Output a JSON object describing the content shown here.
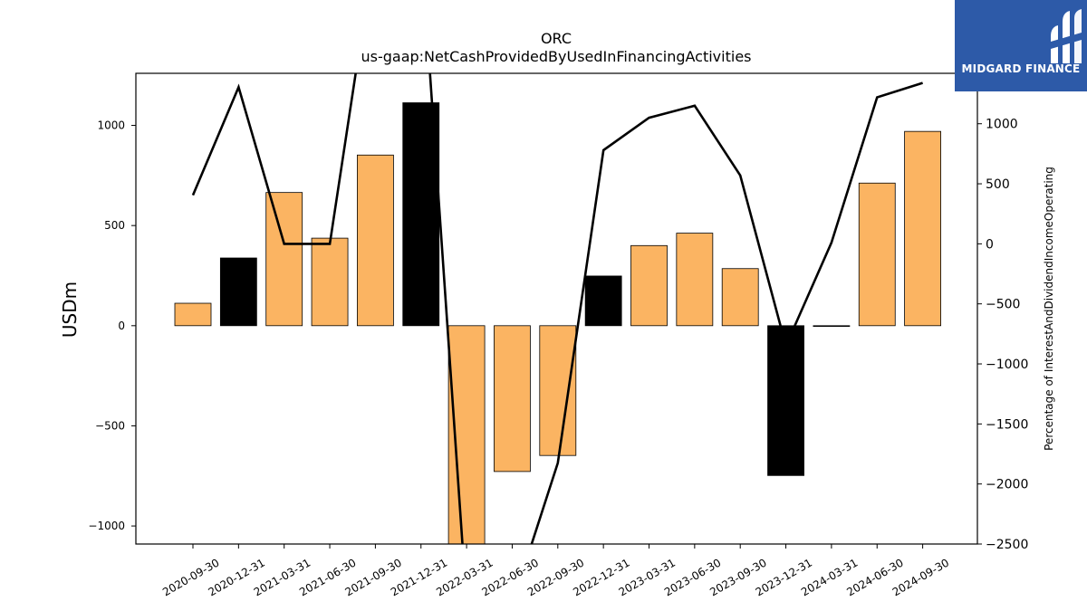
{
  "brand": {
    "name": "MIDGARD FINANCE",
    "color": "#2d5aa8"
  },
  "chart_data": {
    "type": "bar",
    "title": "ORC",
    "subtitle": "us-gaap:NetCashProvidedByUsedInFinancingActivities",
    "ylabel": "USDm",
    "y2label": "Percentage of InterestAndDividendIncomeOperating",
    "ylim": [
      -1090,
      1260
    ],
    "y2lim": [
      -2500,
      1420
    ],
    "yticks": [
      -1000,
      -500,
      0,
      500,
      1000
    ],
    "ytick_labels": [
      "−1000",
      "−500",
      "0",
      "500",
      "1000"
    ],
    "y2ticks": [
      -2500,
      -2000,
      -1500,
      -1000,
      -500,
      0,
      500,
      1000
    ],
    "y2tick_labels": [
      "−2500",
      "−2000",
      "−1500",
      "−1000",
      "−500",
      "0",
      "500",
      "1000"
    ],
    "categories": [
      "2020-09-30",
      "2020-12-31",
      "2021-03-31",
      "2021-06-30",
      "2021-09-30",
      "2021-12-31",
      "2022-03-31",
      "2022-06-30",
      "2022-09-30",
      "2022-12-31",
      "2023-03-31",
      "2023-06-30",
      "2023-09-30",
      "2023-12-31",
      "2024-03-31",
      "2024-06-30",
      "2024-09-30"
    ],
    "series": [
      {
        "axis": "left",
        "kind": "bar",
        "values": [
          112,
          338,
          665,
          437,
          852,
          1113,
          -1100,
          -728,
          -648,
          248,
          400,
          462,
          285,
          -748,
          -3,
          712,
          970
        ],
        "colors": [
          "#fbb462",
          "#000000",
          "#fbb462",
          "#fbb462",
          "#fbb462",
          "#000000",
          "#fbb462",
          "#fbb462",
          "#fbb462",
          "#000000",
          "#fbb462",
          "#fbb462",
          "#fbb462",
          "#000000",
          "#fbb462",
          "#fbb462",
          "#fbb462"
        ]
      },
      {
        "axis": "right",
        "kind": "line",
        "color": "#000000",
        "values": [
          405,
          1305,
          0,
          0,
          2500,
          2500,
          -3000,
          -3000,
          -1825,
          780,
          1050,
          1150,
          570,
          -850,
          10,
          1220,
          1340
        ]
      }
    ],
    "grid": false,
    "legend": "none"
  }
}
